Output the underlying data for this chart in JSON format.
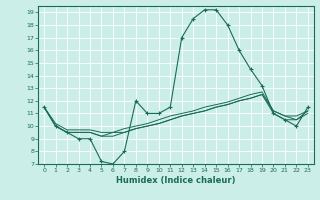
{
  "xlabel": "Humidex (Indice chaleur)",
  "bg_color": "#cceee8",
  "grid_color": "#ffffff",
  "line_color": "#1a6b5a",
  "xlim": [
    -0.5,
    23.5
  ],
  "ylim": [
    7,
    19.5
  ],
  "yticks": [
    7,
    8,
    9,
    10,
    11,
    12,
    13,
    14,
    15,
    16,
    17,
    18,
    19
  ],
  "xticks": [
    0,
    1,
    2,
    3,
    4,
    5,
    6,
    7,
    8,
    9,
    10,
    11,
    12,
    13,
    14,
    15,
    16,
    17,
    18,
    19,
    20,
    21,
    22,
    23
  ],
  "series_main": [
    11.5,
    10.0,
    9.5,
    9.0,
    9.0,
    7.2,
    7.0,
    8.0,
    12.0,
    11.0,
    11.0,
    11.5,
    17.0,
    18.5,
    19.2,
    19.2,
    18.0,
    16.0,
    14.5,
    13.2,
    11.0,
    10.5,
    10.0,
    11.5
  ],
  "series_flat": [
    [
      11.5,
      10.0,
      9.5,
      9.5,
      9.5,
      9.2,
      9.5,
      9.5,
      9.8,
      10.0,
      10.2,
      10.5,
      10.8,
      11.0,
      11.2,
      11.5,
      11.7,
      12.0,
      12.2,
      12.5,
      11.0,
      10.5,
      10.5,
      11.0
    ],
    [
      11.5,
      10.2,
      9.7,
      9.7,
      9.7,
      9.5,
      9.5,
      9.8,
      10.0,
      10.2,
      10.5,
      10.8,
      11.0,
      11.2,
      11.5,
      11.7,
      11.9,
      12.2,
      12.5,
      12.7,
      11.2,
      10.8,
      10.8,
      11.2
    ],
    [
      11.5,
      10.0,
      9.5,
      9.5,
      9.5,
      9.2,
      9.2,
      9.5,
      9.8,
      10.0,
      10.2,
      10.5,
      10.8,
      11.0,
      11.2,
      11.5,
      11.7,
      12.0,
      12.2,
      12.5,
      11.2,
      10.8,
      10.5,
      11.2
    ]
  ]
}
